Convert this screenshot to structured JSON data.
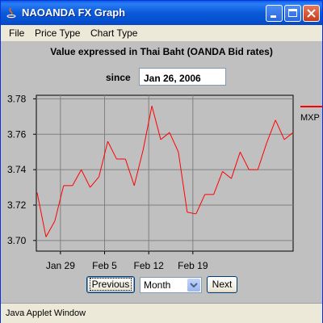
{
  "window": {
    "title": "NAOANDA FX Graph"
  },
  "menu": {
    "items": [
      "File",
      "Price Type",
      "Chart Type"
    ]
  },
  "heading": "Value expressed in Thai Baht (OANDA Bid rates)",
  "since": {
    "label": "since",
    "value": "Jan 26, 2006"
  },
  "controls": {
    "previous_label": "Previous",
    "period_value": "Month",
    "next_label": "Next"
  },
  "status": {
    "text": "Java Applet Window"
  },
  "colors": {
    "series": "#ff0000",
    "plot_bg": "#c0c0c0",
    "grid": "#808080"
  },
  "chart_data": {
    "type": "line",
    "title": "",
    "xlabel": "",
    "ylabel": "",
    "ylim": [
      3.694,
      3.782
    ],
    "grid": true,
    "legend_position": "right",
    "x_ticks": [
      "Jan 29",
      "Feb 5",
      "Feb 12",
      "Feb 19"
    ],
    "y_ticks": [
      "3.70",
      "3.72",
      "3.74",
      "3.76",
      "3.78"
    ],
    "y_tick_values": [
      3.7,
      3.72,
      3.74,
      3.76,
      3.78
    ],
    "series": [
      {
        "name": "MXP",
        "values": [
          3.727,
          3.702,
          3.711,
          3.731,
          3.731,
          3.74,
          3.73,
          3.736,
          3.756,
          3.746,
          3.746,
          3.731,
          3.751,
          3.776,
          3.757,
          3.761,
          3.75,
          3.716,
          3.715,
          3.726,
          3.726,
          3.739,
          3.735,
          3.75,
          3.74,
          3.74,
          3.755,
          3.768,
          3.757,
          3.761
        ]
      }
    ]
  }
}
